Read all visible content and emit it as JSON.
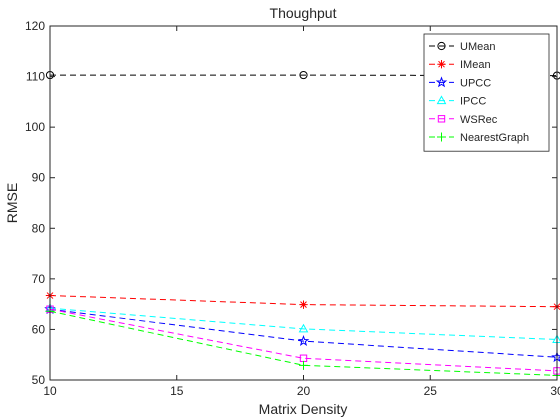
{
  "chart_data": {
    "type": "line",
    "title": "Thoughput",
    "xlabel": "Matrix Density",
    "ylabel": "RMSE",
    "x": [
      10,
      20,
      30
    ],
    "xlim": [
      10,
      30
    ],
    "ylim": [
      50,
      120
    ],
    "xticks": [
      10,
      15,
      20,
      25,
      30
    ],
    "yticks": [
      50,
      60,
      70,
      80,
      90,
      100,
      110,
      120
    ],
    "legend_position": "top-right",
    "grid": false,
    "series": [
      {
        "name": "UMean",
        "values": [
          110.3,
          110.3,
          110.2
        ],
        "color": "#000000",
        "marker": "circle"
      },
      {
        "name": "IMean",
        "values": [
          66.7,
          64.9,
          64.5
        ],
        "color": "#ff0000",
        "marker": "asterisk"
      },
      {
        "name": "UPCC",
        "values": [
          64.0,
          57.7,
          54.5
        ],
        "color": "#0000ff",
        "marker": "star"
      },
      {
        "name": "IPCC",
        "values": [
          64.2,
          60.1,
          58.0
        ],
        "color": "#00ffff",
        "marker": "triangle"
      },
      {
        "name": "WSRec",
        "values": [
          64.0,
          54.3,
          51.8
        ],
        "color": "#ff00ff",
        "marker": "square"
      },
      {
        "name": "NearestGraph",
        "values": [
          63.6,
          52.9,
          50.9
        ],
        "color": "#00ff00",
        "marker": "plus"
      }
    ]
  }
}
